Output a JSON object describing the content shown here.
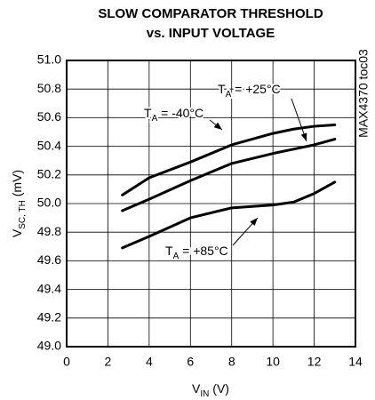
{
  "chart_data": {
    "type": "line",
    "title": [
      "SLOW COMPARATOR THRESHOLD",
      "vs. INPUT VOLTAGE"
    ],
    "x_label": [
      "V",
      "IN",
      " (V)"
    ],
    "y_label": [
      "V",
      "SC, TH",
      " (mV)"
    ],
    "side_note": "MAX4370 toc03",
    "x": [
      2.7,
      4,
      6,
      8,
      10,
      11,
      12,
      13
    ],
    "series": [
      {
        "name": [
          "T",
          "A",
          " = -40°C"
        ],
        "color": "#000000",
        "values": [
          50.06,
          50.18,
          50.29,
          50.41,
          50.49,
          50.52,
          50.54,
          50.55
        ]
      },
      {
        "name": [
          "T",
          "A",
          " = +25°C"
        ],
        "color": "#000000",
        "values": [
          49.95,
          50.03,
          50.16,
          50.28,
          50.35,
          50.38,
          50.41,
          50.45
        ]
      },
      {
        "name": [
          "T",
          "A",
          " = +85°C"
        ],
        "color": "#000000",
        "values": [
          49.69,
          49.77,
          49.9,
          49.97,
          49.99,
          50.01,
          50.07,
          50.15
        ]
      }
    ],
    "xlim": [
      0,
      14
    ],
    "xticks": [
      0,
      2,
      4,
      6,
      8,
      10,
      12,
      14
    ],
    "ylim": [
      49,
      51
    ],
    "yticks": [
      {
        "value": 49,
        "label": "49.0"
      },
      49.2,
      49.4,
      49.6,
      49.8,
      {
        "value": 50,
        "label": "50.0"
      },
      50.2,
      50.4,
      50.6,
      50.8,
      {
        "value": 51,
        "label": "51.0"
      }
    ],
    "grid": true
  }
}
